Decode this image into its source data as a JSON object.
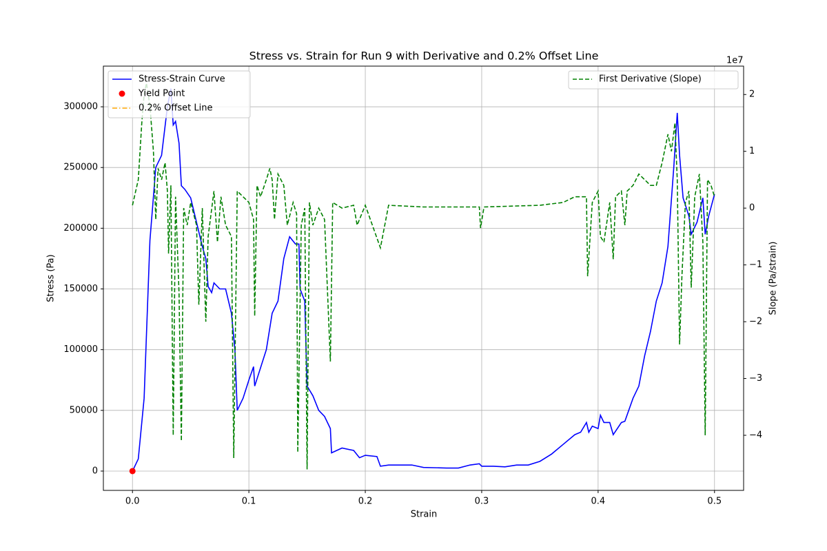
{
  "chart_data": {
    "type": "line",
    "title": "Stress vs. Strain for Run 9 with Derivative and 0.2% Offset Line",
    "xlabel": "Strain",
    "ylabel": "Stress (Pa)",
    "y2label": "Slope (Pa/strain)",
    "y2offset": "1e7",
    "ylabel_color": "#0000ff",
    "y2label_color": "#008000",
    "grid": true,
    "xlim": [
      -0.025,
      0.525
    ],
    "ylim": [
      -15900,
      333500
    ],
    "y2lim": [
      -49700000,
      25000000
    ],
    "xticks": [
      {
        "value": 0,
        "label": "0.0"
      },
      0.1,
      0.2,
      0.3,
      0.4,
      0.5
    ],
    "yticks": [
      0,
      50000,
      100000,
      150000,
      200000,
      250000,
      300000
    ],
    "y2ticks": [
      {
        "value": -40000000,
        "label": "−4"
      },
      {
        "value": -30000000,
        "label": "−3"
      },
      {
        "value": -20000000,
        "label": "−2"
      },
      {
        "value": -10000000,
        "label": "−1"
      },
      0,
      {
        "value": 10000000,
        "label": "1"
      },
      {
        "value": 20000000,
        "label": "2"
      }
    ],
    "series": [
      {
        "name": "Stress-Strain Curve",
        "type": "line",
        "color": "#0000ff",
        "dash": "solid",
        "legend": "upper left",
        "x": [
          0,
          0.005,
          0.01,
          0.015,
          0.02,
          0.025,
          0.03,
          0.033,
          0.035,
          0.037,
          0.04,
          0.042,
          0.045,
          0.05,
          0.055,
          0.06,
          0.063,
          0.065,
          0.068,
          0.07,
          0.075,
          0.08,
          0.085,
          0.088,
          0.09,
          0.095,
          0.1,
          0.104,
          0.105,
          0.11,
          0.115,
          0.12,
          0.125,
          0.13,
          0.135,
          0.14,
          0.143,
          0.144,
          0.148,
          0.15,
          0.155,
          0.16,
          0.165,
          0.17,
          0.171,
          0.18,
          0.19,
          0.195,
          0.2,
          0.21,
          0.213,
          0.22,
          0.24,
          0.25,
          0.27,
          0.28,
          0.29,
          0.298,
          0.3,
          0.31,
          0.32,
          0.33,
          0.34,
          0.35,
          0.36,
          0.37,
          0.38,
          0.385,
          0.39,
          0.392,
          0.395,
          0.4,
          0.402,
          0.405,
          0.41,
          0.413,
          0.42,
          0.423,
          0.43,
          0.435,
          0.44,
          0.445,
          0.45,
          0.455,
          0.46,
          0.465,
          0.468,
          0.47,
          0.473,
          0.478,
          0.48,
          0.485,
          0.49,
          0.492,
          0.495,
          0.5
        ],
        "values": [
          0,
          10000,
          60000,
          190000,
          250000,
          260000,
          300000,
          315000,
          285000,
          288000,
          270000,
          235000,
          232000,
          225000,
          205000,
          185000,
          175000,
          152000,
          147000,
          155000,
          150000,
          150000,
          130000,
          100000,
          50000,
          60000,
          75000,
          86000,
          70000,
          85000,
          100000,
          130000,
          140000,
          175000,
          193000,
          187000,
          187000,
          150000,
          140000,
          70000,
          62000,
          50000,
          45000,
          35000,
          15000,
          19000,
          17000,
          11000,
          13000,
          12000,
          4000,
          5000,
          5000,
          3000,
          2500,
          2500,
          5000,
          6000,
          4000,
          4000,
          3500,
          5000,
          5000,
          8000,
          14000,
          22000,
          30000,
          32000,
          40000,
          32000,
          37000,
          35000,
          46000,
          40000,
          40000,
          30000,
          40000,
          41000,
          60000,
          70000,
          95000,
          115000,
          140000,
          155000,
          185000,
          250000,
          295000,
          260000,
          225000,
          210000,
          195000,
          205000,
          225000,
          195000,
          210000,
          228000
        ]
      },
      {
        "name": "Yield Point",
        "type": "scatter",
        "color": "#ff0000",
        "legend": "upper left",
        "x": [
          0
        ],
        "values": [
          0
        ]
      },
      {
        "name": "0.2% Offset Line",
        "type": "line",
        "color": "#ffa500",
        "dash": "dashdot",
        "legend": "upper left",
        "x": [],
        "values": []
      },
      {
        "name": "First Derivative (Slope)",
        "type": "line",
        "color": "#008000",
        "dash": "dashed",
        "axis": "y2",
        "legend": "upper right",
        "x": [
          0,
          0.005,
          0.008,
          0.01,
          0.012,
          0.015,
          0.018,
          0.02,
          0.022,
          0.025,
          0.028,
          0.03,
          0.031,
          0.033,
          0.035,
          0.037,
          0.04,
          0.042,
          0.044,
          0.047,
          0.05,
          0.055,
          0.057,
          0.06,
          0.063,
          0.065,
          0.07,
          0.073,
          0.076,
          0.08,
          0.085,
          0.087,
          0.09,
          0.095,
          0.1,
          0.104,
          0.105,
          0.107,
          0.11,
          0.115,
          0.118,
          0.12,
          0.122,
          0.125,
          0.13,
          0.133,
          0.138,
          0.141,
          0.142,
          0.145,
          0.148,
          0.15,
          0.152,
          0.155,
          0.16,
          0.165,
          0.17,
          0.172,
          0.18,
          0.19,
          0.193,
          0.2,
          0.213,
          0.22,
          0.25,
          0.298,
          0.299,
          0.302,
          0.35,
          0.37,
          0.38,
          0.39,
          0.391,
          0.395,
          0.4,
          0.402,
          0.405,
          0.41,
          0.413,
          0.415,
          0.42,
          0.423,
          0.425,
          0.43,
          0.435,
          0.44,
          0.445,
          0.45,
          0.455,
          0.46,
          0.463,
          0.466,
          0.468,
          0.47,
          0.472,
          0.475,
          0.478,
          0.48,
          0.483,
          0.487,
          0.49,
          0.492,
          0.494,
          0.497,
          0.5
        ],
        "values": [
          500000,
          5000000,
          15000000,
          20000000,
          22000000,
          18000000,
          10000000,
          -2000000,
          7000000,
          5000000,
          8000000,
          3000000,
          -8000000,
          4000000,
          -40000000,
          2000000,
          -15000000,
          -41000000,
          0,
          -3000000,
          1000000,
          -3000000,
          -17000000,
          0,
          -20000000,
          -5000000,
          3000000,
          -6000000,
          2000000,
          -3000000,
          -5000000,
          -44000000,
          3000000,
          2000000,
          1000000,
          -2000000,
          -19000000,
          4000000,
          2000000,
          5000000,
          7000000,
          5000000,
          -2000000,
          6000000,
          4000000,
          -3000000,
          1000000,
          -1000000,
          -43000000,
          -3000000,
          0,
          -46000000,
          1000000,
          -3000000,
          0,
          -2000000,
          -27000000,
          1000000,
          0,
          500000,
          -3000000,
          500000,
          -7000000,
          500000,
          200000,
          200000,
          -3500000,
          200000,
          500000,
          1000000,
          2000000,
          2000000,
          -12000000,
          1000000,
          3000000,
          -5000000,
          -6000000,
          1000000,
          -9000000,
          2000000,
          3000000,
          -3000000,
          3000000,
          4000000,
          6000000,
          5000000,
          4000000,
          4000000,
          8000000,
          13000000,
          10000000,
          15000000,
          5000000,
          -24000000,
          -12000000,
          1000000,
          3000000,
          -14000000,
          2000000,
          6000000,
          -6000000,
          -40000000,
          5000000,
          4000000,
          2000000
        ]
      }
    ]
  }
}
